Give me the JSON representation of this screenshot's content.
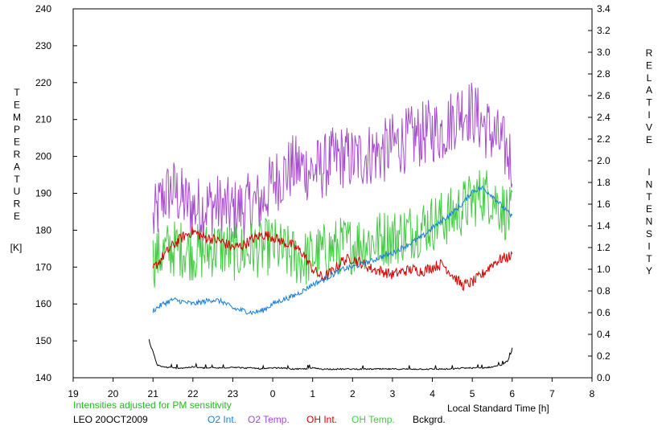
{
  "chart_data": {
    "type": "line",
    "title": "",
    "left_axis": {
      "label_letters": [
        "T",
        "E",
        "M",
        "P",
        "E",
        "R",
        "A",
        "T",
        "U",
        "R",
        "E"
      ],
      "unit": "[K]",
      "ylim": [
        140,
        240
      ],
      "ticks": [
        "140",
        "150",
        "160",
        "170",
        "180",
        "190",
        "200",
        "210",
        "220",
        "230",
        "240"
      ]
    },
    "right_axis": {
      "label_word1": [
        "R",
        "E",
        "L",
        "A",
        "T",
        "I",
        "V",
        "E"
      ],
      "label_word2": [
        "I",
        "N",
        "T",
        "E",
        "N",
        "S",
        "I",
        "T",
        "Y"
      ],
      "ylim": [
        0.0,
        3.4
      ],
      "ticks": [
        "0.0",
        "0.2",
        "0.4",
        "0.6",
        "0.8",
        "1.0",
        "1.2",
        "1.4",
        "1.6",
        "1.8",
        "2.0",
        "2.2",
        "2.4",
        "2.6",
        "2.8",
        "3.0",
        "3.2",
        "3.4"
      ]
    },
    "x_axis": {
      "label": "Local Standard Time [h]",
      "xlim": [
        19,
        32
      ],
      "ticks": [
        "19",
        "20",
        "21",
        "22",
        "23",
        "0",
        "1",
        "2",
        "3",
        "4",
        "5",
        "6",
        "7",
        "8"
      ]
    },
    "series": [
      {
        "name": "O2 Temp.",
        "axis": "left",
        "color": "#a64dcc",
        "x": [
          21.0,
          21.25,
          21.5,
          21.75,
          22.0,
          22.25,
          22.5,
          22.75,
          23.0,
          23.25,
          23.5,
          23.75,
          24.0,
          24.25,
          24.5,
          24.75,
          25.0,
          25.25,
          25.5,
          25.75,
          26.0,
          26.25,
          26.5,
          26.75,
          27.0,
          27.25,
          27.5,
          27.75,
          28.0,
          28.25,
          28.5,
          28.75,
          29.0,
          29.25,
          29.5,
          29.75,
          30.0
        ],
        "y": [
          182,
          189,
          191,
          188,
          186,
          186,
          187,
          186,
          185,
          186,
          187,
          188,
          193,
          195,
          197,
          197,
          196,
          197,
          199,
          200,
          199,
          200,
          201,
          201,
          203,
          204,
          205,
          206,
          207,
          207,
          210,
          213,
          212,
          209,
          206,
          203,
          199
        ],
        "amp": 9
      },
      {
        "name": "OH Temp.",
        "axis": "left",
        "color": "#44cc44",
        "x": [
          21.0,
          21.25,
          21.5,
          21.75,
          22.0,
          22.25,
          22.5,
          22.75,
          23.0,
          23.25,
          23.5,
          23.75,
          24.0,
          24.25,
          24.5,
          24.75,
          25.0,
          25.25,
          25.5,
          25.75,
          26.0,
          26.25,
          26.5,
          26.75,
          27.0,
          27.25,
          27.5,
          27.75,
          28.0,
          28.25,
          28.5,
          28.75,
          29.0,
          29.25,
          29.5,
          29.75,
          30.0
        ],
        "y": [
          172,
          174,
          175,
          175,
          174,
          174,
          175,
          175,
          174,
          174,
          175,
          175,
          176,
          174,
          173,
          172,
          173,
          174,
          175,
          176,
          176,
          177,
          177,
          178,
          178,
          179,
          180,
          181,
          182,
          183,
          184,
          186,
          188,
          190,
          189,
          186,
          183
        ],
        "amp": 8
      },
      {
        "name": "OH Int.",
        "axis": "right",
        "color": "#d40000",
        "x": [
          21.0,
          21.25,
          21.5,
          21.75,
          22.0,
          22.25,
          22.5,
          22.75,
          23.0,
          23.25,
          23.5,
          23.75,
          24.0,
          24.25,
          24.5,
          24.75,
          25.0,
          25.25,
          25.5,
          25.75,
          26.0,
          26.25,
          26.5,
          26.75,
          27.0,
          27.25,
          27.5,
          27.75,
          28.0,
          28.25,
          28.5,
          28.75,
          29.0,
          29.25,
          29.5,
          29.75,
          30.0
        ],
        "y": [
          1.0,
          1.12,
          1.22,
          1.3,
          1.35,
          1.3,
          1.28,
          1.25,
          1.2,
          1.22,
          1.28,
          1.32,
          1.3,
          1.25,
          1.22,
          1.15,
          1.0,
          0.92,
          0.98,
          1.08,
          1.1,
          1.05,
          1.0,
          0.98,
          0.95,
          0.98,
          1.0,
          0.98,
          1.02,
          1.05,
          0.95,
          0.85,
          0.88,
          0.95,
          1.05,
          1.1,
          1.12
        ],
        "amp": 0.05
      },
      {
        "name": "O2 Int.",
        "axis": "right",
        "color": "#1a7fd4",
        "x": [
          21.0,
          21.25,
          21.5,
          21.75,
          22.0,
          22.25,
          22.5,
          22.75,
          23.0,
          23.25,
          23.5,
          23.75,
          24.0,
          24.25,
          24.5,
          24.75,
          25.0,
          25.25,
          25.5,
          25.75,
          26.0,
          26.25,
          26.5,
          26.75,
          27.0,
          27.25,
          27.5,
          27.75,
          28.0,
          28.25,
          28.5,
          28.75,
          29.0,
          29.25,
          29.5,
          29.75,
          30.0
        ],
        "y": [
          0.62,
          0.68,
          0.72,
          0.7,
          0.68,
          0.7,
          0.72,
          0.7,
          0.64,
          0.62,
          0.6,
          0.62,
          0.68,
          0.72,
          0.75,
          0.8,
          0.86,
          0.9,
          0.95,
          1.0,
          1.02,
          1.05,
          1.08,
          1.12,
          1.15,
          1.2,
          1.25,
          1.3,
          1.38,
          1.45,
          1.52,
          1.6,
          1.72,
          1.75,
          1.68,
          1.58,
          1.48
        ],
        "amp": 0.025
      },
      {
        "name": "Bckgrd.",
        "axis": "right",
        "color": "#000000",
        "x": [
          20.9,
          21.0,
          21.1,
          21.25,
          21.5,
          21.75,
          22.0,
          22.25,
          22.5,
          22.75,
          23.0,
          23.25,
          23.5,
          23.75,
          24.0,
          24.25,
          24.5,
          24.75,
          25.0,
          25.25,
          25.5,
          25.75,
          26.0,
          26.25,
          26.5,
          26.75,
          27.0,
          27.25,
          27.5,
          27.75,
          28.0,
          28.25,
          28.5,
          28.75,
          29.0,
          29.25,
          29.5,
          29.75,
          29.9,
          30.0
        ],
        "y": [
          0.33,
          0.24,
          0.12,
          0.1,
          0.09,
          0.09,
          0.1,
          0.09,
          0.09,
          0.09,
          0.1,
          0.09,
          0.09,
          0.08,
          0.09,
          0.09,
          0.08,
          0.08,
          0.09,
          0.08,
          0.08,
          0.08,
          0.08,
          0.08,
          0.08,
          0.08,
          0.08,
          0.08,
          0.08,
          0.08,
          0.08,
          0.08,
          0.08,
          0.09,
          0.09,
          0.09,
          0.1,
          0.12,
          0.16,
          0.25
        ],
        "amp": 0.006
      }
    ]
  },
  "footer": {
    "note": "Intensities adjusted for PM sensitivity",
    "station": "LEO 20OCT2009",
    "xlabel": "Local Standard Time [h]",
    "legend": [
      {
        "label": "O2 Int.",
        "color": "#1a7fd4"
      },
      {
        "label": "O2 Temp.",
        "color": "#a64dcc"
      },
      {
        "label": "OH Int.",
        "color": "#d40000"
      },
      {
        "label": "OH Temp.",
        "color": "#44cc44"
      },
      {
        "label": "Bckgrd.",
        "color": "#000000"
      }
    ]
  }
}
